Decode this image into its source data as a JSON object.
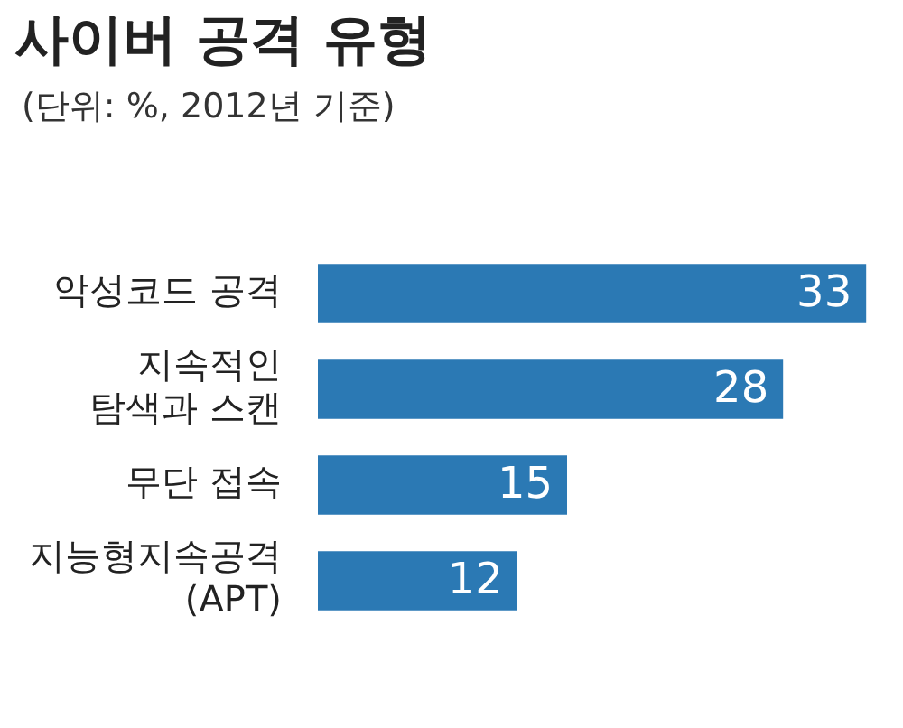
{
  "chart_data": {
    "type": "bar",
    "orientation": "horizontal",
    "title": "사이버 공격 유형",
    "subtitle": "(단위: %, 2012년 기준)",
    "categories": [
      "악성코드 공격",
      "지속적인\n탐색과 스캔",
      "무단 접속",
      "지능형지속공격\n(APT)"
    ],
    "values": [
      33,
      28,
      15,
      12
    ],
    "color": "#2b79b4",
    "data_labels": true,
    "legend": false
  }
}
